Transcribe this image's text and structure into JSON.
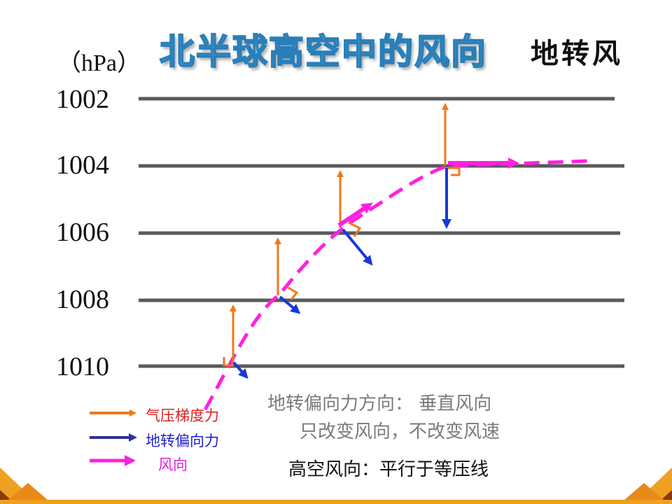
{
  "title": "北半球高空中的风向",
  "subtitle": "地转风",
  "unit_label": "（hPa）",
  "isobars": [
    {
      "label": "1002"
    },
    {
      "label": "1004"
    },
    {
      "label": "1006"
    },
    {
      "label": "1008"
    },
    {
      "label": "1010"
    }
  ],
  "legend": [
    {
      "label": "气压梯度力",
      "color": "#f07818",
      "text_color": "#e02020"
    },
    {
      "label": "地转偏向力",
      "color": "#303098",
      "text_color": "#2020d0"
    },
    {
      "label": "风向",
      "color": "#ff00ff",
      "text_color": "#e020e0"
    }
  ],
  "notes": {
    "line1": "地转偏向力方向：  垂直风向",
    "line2": "只改变风向，不改变风速",
    "line3": "高空风向：平行于等压线"
  },
  "colors": {
    "isobar": "#5a5a5a",
    "pressure_gradient": "#f07818",
    "coriolis": "#1838d8",
    "wind": "#ff20e0",
    "deco_orange": "#f0a020",
    "deco_dark": "#8a3a0a"
  }
}
